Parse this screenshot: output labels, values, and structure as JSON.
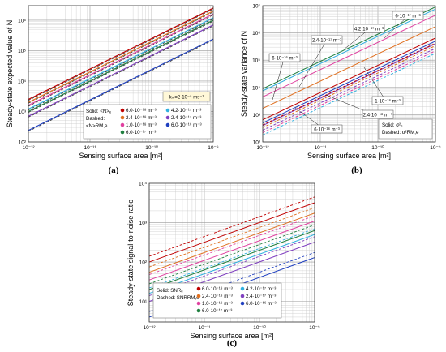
{
  "chart_data": [
    {
      "panel": "(a)",
      "type": "line",
      "x_scale": "log",
      "y_scale": "log",
      "xlabel": "Sensing surface area [m²]",
      "ylabel": "Steady-state expected value of N",
      "xlim": [
        1e-12,
        1e-09
      ],
      "ylim": [
        100,
        3000000
      ],
      "xticks": [
        "10⁻¹²",
        "10⁻¹¹",
        "10⁻¹⁰",
        "10⁻⁹"
      ],
      "yticks": [
        "10²",
        "10³",
        "10⁴",
        "10⁵",
        "10⁶"
      ],
      "grid": true,
      "annotation": "kₘ=2·10⁻⁵ ms⁻¹",
      "legend_title": [
        "Solid: <N>ₑ",
        "Dashed:",
        "<N>RM,e"
      ],
      "legend_placement": "bottom-right",
      "series": [
        {
          "name": "6.0·10⁻¹⁸ m⁻³",
          "color": "#c00000",
          "style": "solid+dashed",
          "values": [
            2500,
            2500000
          ]
        },
        {
          "name": "2.4·10⁻¹⁸ m⁻³",
          "color": "#e07020",
          "style": "solid+dashed",
          "values": [
            2000,
            2000000
          ]
        },
        {
          "name": "1.0·10⁻¹⁸ m⁻³",
          "color": "#e040a0",
          "style": "solid+dashed",
          "values": [
            1600,
            1600000
          ]
        },
        {
          "name": "6.0·10⁻¹⁷ m⁻³",
          "color": "#208040",
          "style": "solid+dashed",
          "values": [
            1000,
            1000000
          ]
        },
        {
          "name": "4.2·10⁻¹⁷ m⁻³",
          "color": "#30b0e0",
          "style": "solid+dashed",
          "values": [
            1200,
            1200000
          ]
        },
        {
          "name": "2.4·10⁻¹⁷ m⁻³",
          "color": "#8040c0",
          "style": "solid+dashed",
          "values": [
            700,
            700000
          ]
        },
        {
          "name": "6.0·10⁻¹⁶ m⁻³",
          "color": "#2040c0",
          "style": "solid+dashed",
          "values": [
            240,
            240000
          ]
        }
      ],
      "x": [
        1e-12,
        1e-09
      ]
    },
    {
      "panel": "(b)",
      "type": "line",
      "x_scale": "log",
      "y_scale": "log",
      "xlabel": "Sensing surface area [m²]",
      "ylabel": "Steady-state variance of N",
      "xlim": [
        1e-12,
        1e-09
      ],
      "ylim": [
        100,
        10000000
      ],
      "xticks": [
        "10⁻¹²",
        "10⁻¹¹",
        "10⁻¹⁰",
        "10⁻⁹"
      ],
      "yticks": [
        "10²",
        "10³",
        "10⁴",
        "10⁵",
        "10⁶",
        "10⁷"
      ],
      "grid": true,
      "legend_title": [
        "Solid: σ²ₑ",
        "Dashed: σ²RM,e"
      ],
      "legend_placement": "bottom-right",
      "callouts": [
        "6·10⁻¹⁷ m⁻³",
        "4.2·10⁻¹⁷ m⁻³",
        "2.4·10⁻¹⁷ m⁻³",
        "6·10⁻¹⁶ m⁻³",
        "1·10⁻¹⁸ m⁻³",
        "2.4·10⁻¹⁸ m⁻³",
        "6·10⁻¹⁸ m⁻³"
      ],
      "x": [
        1e-12,
        1e-09
      ],
      "series": [
        {
          "color": "#208040",
          "style": "solid",
          "values": [
            9000,
            9000000
          ]
        },
        {
          "color": "#30b0e0",
          "style": "solid",
          "values": [
            7500,
            7500000
          ]
        },
        {
          "color": "#e040a0",
          "style": "solid",
          "values": [
            4500,
            4500000
          ]
        },
        {
          "color": "#e07020",
          "style": "solid",
          "values": [
            1700,
            1700000
          ]
        },
        {
          "color": "#2040c0",
          "style": "solid",
          "values": [
            500,
            500000
          ]
        },
        {
          "color": "#c00000",
          "style": "solid",
          "values": [
            650,
            650000
          ]
        },
        {
          "color": "#8040c0",
          "style": "solid",
          "values": [
            400,
            400000
          ]
        },
        {
          "color": "#c00000",
          "style": "dashed",
          "values": [
            420,
            420000
          ]
        },
        {
          "color": "#e07020",
          "style": "dashed",
          "values": [
            340,
            340000
          ]
        },
        {
          "color": "#8040c0",
          "style": "dashed",
          "values": [
            270,
            270000
          ]
        },
        {
          "color": "#e040a0",
          "style": "dashed",
          "values": [
            220,
            220000
          ]
        },
        {
          "color": "#30b0e0",
          "style": "dashed",
          "values": [
            180,
            180000
          ]
        }
      ]
    },
    {
      "panel": "(c)",
      "type": "line",
      "x_scale": "log",
      "y_scale": "log",
      "xlabel": "Sensing surface area [m²]",
      "ylabel": "Steady-state signal-to-noise ratio",
      "xlim": [
        1e-12,
        1e-09
      ],
      "ylim": [
        3,
        10000
      ],
      "xticks": [
        "10⁻¹²",
        "10⁻¹¹",
        "10⁻¹⁰",
        "10⁻⁹"
      ],
      "yticks": [
        "10¹",
        "10²",
        "10³",
        "10⁴"
      ],
      "grid": true,
      "legend_title": [
        "Solid: SNRₑ",
        "Dashed: SNRRM,e"
      ],
      "legend_placement": "bottom-right",
      "x": [
        1e-12,
        1e-09
      ],
      "series": [
        {
          "name": "6.0·10⁻¹⁸ m⁻³",
          "color": "#c00000",
          "solid": [
            100,
            3200
          ],
          "dashed": [
            140,
            4500
          ]
        },
        {
          "name": "2.4·10⁻¹⁸ m⁻³",
          "color": "#e07020",
          "solid": [
            55,
            1750
          ],
          "dashed": [
            75,
            2400
          ]
        },
        {
          "name": "1.0·10⁻¹⁸ m⁻³",
          "color": "#e040a0",
          "solid": [
            35,
            1100
          ],
          "dashed": [
            48,
            1500
          ]
        },
        {
          "name": "6.0·10⁻¹⁷ m⁻³",
          "color": "#208040",
          "solid": [
            20,
            630
          ],
          "dashed": [
            28,
            880
          ]
        },
        {
          "name": "4.2·10⁻¹⁷ m⁻³",
          "color": "#30b0e0",
          "solid": [
            16,
            500
          ],
          "dashed": [
            22,
            700
          ]
        },
        {
          "name": "2.4·10⁻¹⁷ m⁻³",
          "color": "#8040c0",
          "solid": [
            10,
            320
          ],
          "dashed": [
            14,
            440
          ]
        },
        {
          "name": "6.0·10⁻¹⁶ m⁻³",
          "color": "#2040c0",
          "solid": [
            4,
            130
          ],
          "dashed": [
            5.5,
            175
          ]
        }
      ]
    }
  ]
}
